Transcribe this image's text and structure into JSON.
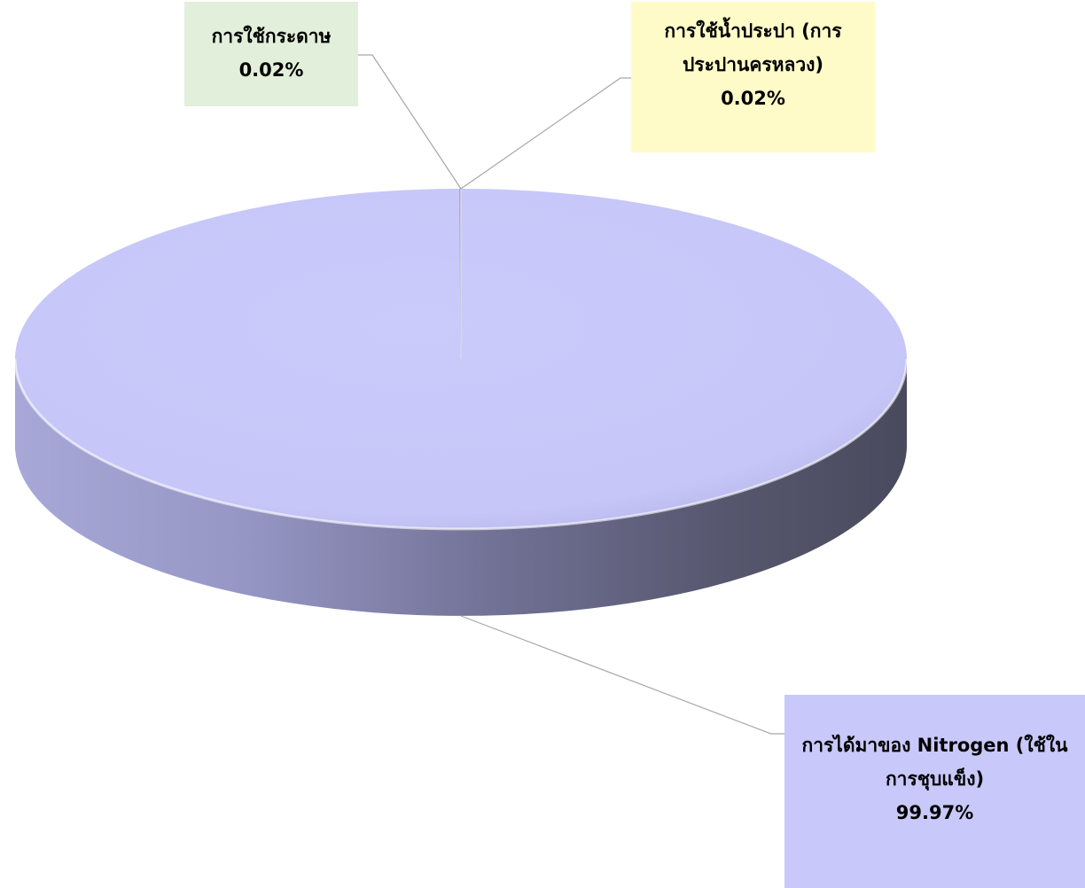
{
  "chart_data": {
    "type": "pie",
    "title": "",
    "variant": "3d",
    "slices": [
      {
        "label": "การได้มาของ Nitrogen (ใช้ในการชุบแข็ง)",
        "value": 99.97,
        "value_label": "99.97%",
        "color": "#c8c8fa"
      },
      {
        "label": "การใช้กระดาษ",
        "value": 0.02,
        "value_label": "0.02%",
        "color": "#e2efda"
      },
      {
        "label": "การใช้น้ำประปา (การประปานครหลวง)",
        "value": 0.02,
        "value_label": "0.02%",
        "color": "#fefbc8"
      }
    ],
    "legend": "none",
    "leader_line_color": "#a6a6a6"
  }
}
